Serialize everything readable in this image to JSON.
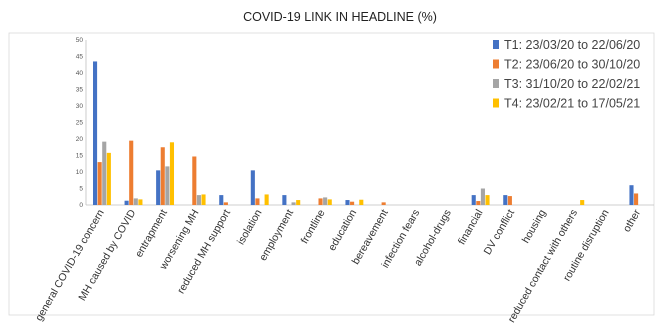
{
  "chart_data": {
    "type": "bar",
    "title": "COVID-19 LINK IN HEADLINE (%)",
    "xlabel": "",
    "ylabel": "",
    "ylim": [
      0,
      50
    ],
    "yticks": [
      0,
      5,
      10,
      15,
      20,
      25,
      30,
      35,
      40,
      45,
      50
    ],
    "grid": false,
    "legend_position": "top-right",
    "categories": [
      "general COVID-19 concern",
      "MH caused by COVID",
      "entrapment",
      "worsening MH",
      "reduced MH support",
      "isolation",
      "employment",
      "frontline",
      "education",
      "bereavement",
      "infection fears",
      "alcohol-drugs",
      "financial",
      "DV conflict",
      "housing",
      "reduced contact with others",
      "routine disruption",
      "other"
    ],
    "series": [
      {
        "name": "T1: 23/03/20 to 22/06/20",
        "color": "#4472C4",
        "values": [
          43.5,
          1.3,
          10.5,
          0,
          3,
          10.5,
          3,
          0,
          1.5,
          0,
          0,
          0,
          3,
          3,
          0,
          0,
          0,
          6
        ]
      },
      {
        "name": "T2: 23/06/20 to 30/10/20",
        "color": "#ED7D31",
        "values": [
          13,
          19.5,
          17.5,
          14.7,
          0.8,
          2,
          0,
          2,
          1,
          0.8,
          0,
          0,
          1.2,
          2.7,
          0,
          0,
          0,
          3.5
        ]
      },
      {
        "name": "T3: 31/10/20 to 22/02/21",
        "color": "#A5A5A5",
        "values": [
          19.2,
          2,
          11.7,
          3,
          0,
          0,
          0.8,
          2.3,
          0,
          0,
          0,
          0,
          5,
          0,
          0,
          0,
          0,
          0
        ]
      },
      {
        "name": "T4: 23/02/21 to 17/05/21",
        "color": "#FFC000",
        "values": [
          15.8,
          1.7,
          19,
          3.2,
          0,
          3.2,
          1.5,
          1.7,
          1.6,
          0,
          0,
          0,
          3,
          0,
          0,
          1.5,
          0,
          0
        ]
      }
    ]
  }
}
